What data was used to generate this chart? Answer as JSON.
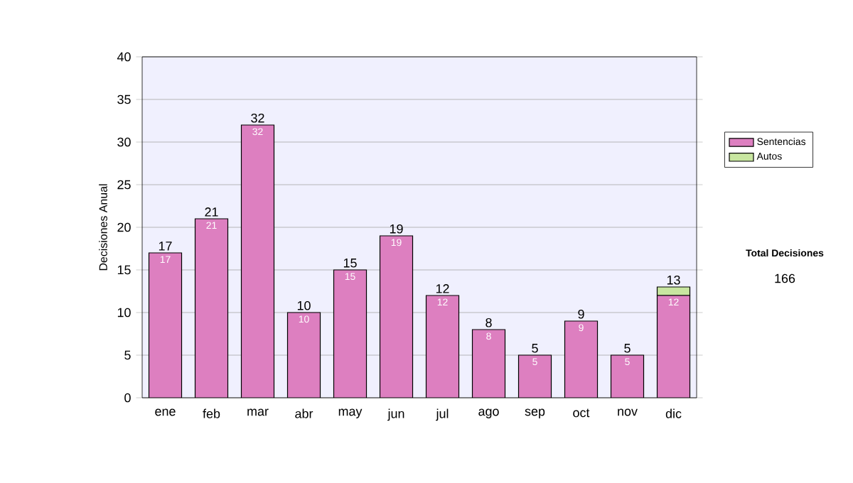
{
  "chart_data": {
    "type": "bar",
    "stacked": true,
    "ylabel": "Decisiones Anual",
    "categories": [
      "ene",
      "feb",
      "mar",
      "abr",
      "may",
      "jun",
      "jul",
      "ago",
      "sep",
      "oct",
      "nov",
      "dic"
    ],
    "series": [
      {
        "name": "Sentencias",
        "color": "#dd7fc0",
        "values": [
          17,
          21,
          32,
          10,
          15,
          19,
          12,
          8,
          5,
          9,
          5,
          12
        ],
        "value_labels": [
          "17",
          "21",
          "32",
          "10",
          "15",
          "19",
          "12",
          "8",
          "5",
          "9",
          "5",
          "12"
        ]
      },
      {
        "name": "Autos",
        "color": "#c8e6a0",
        "values": [
          0,
          0,
          0,
          0,
          0,
          0,
          0,
          0,
          0,
          0,
          0,
          1
        ]
      }
    ],
    "totals": [
      "17",
      "21",
      "32",
      "10",
      "15",
      "19",
      "12",
      "8",
      "5",
      "9",
      "5",
      "13"
    ],
    "ylim": [
      0,
      40
    ],
    "yticks": [
      0,
      5,
      10,
      15,
      20,
      25,
      30,
      35,
      40
    ],
    "grid": "y",
    "legend": "right",
    "annotations": [
      "Total Decisiones",
      "166"
    ]
  }
}
